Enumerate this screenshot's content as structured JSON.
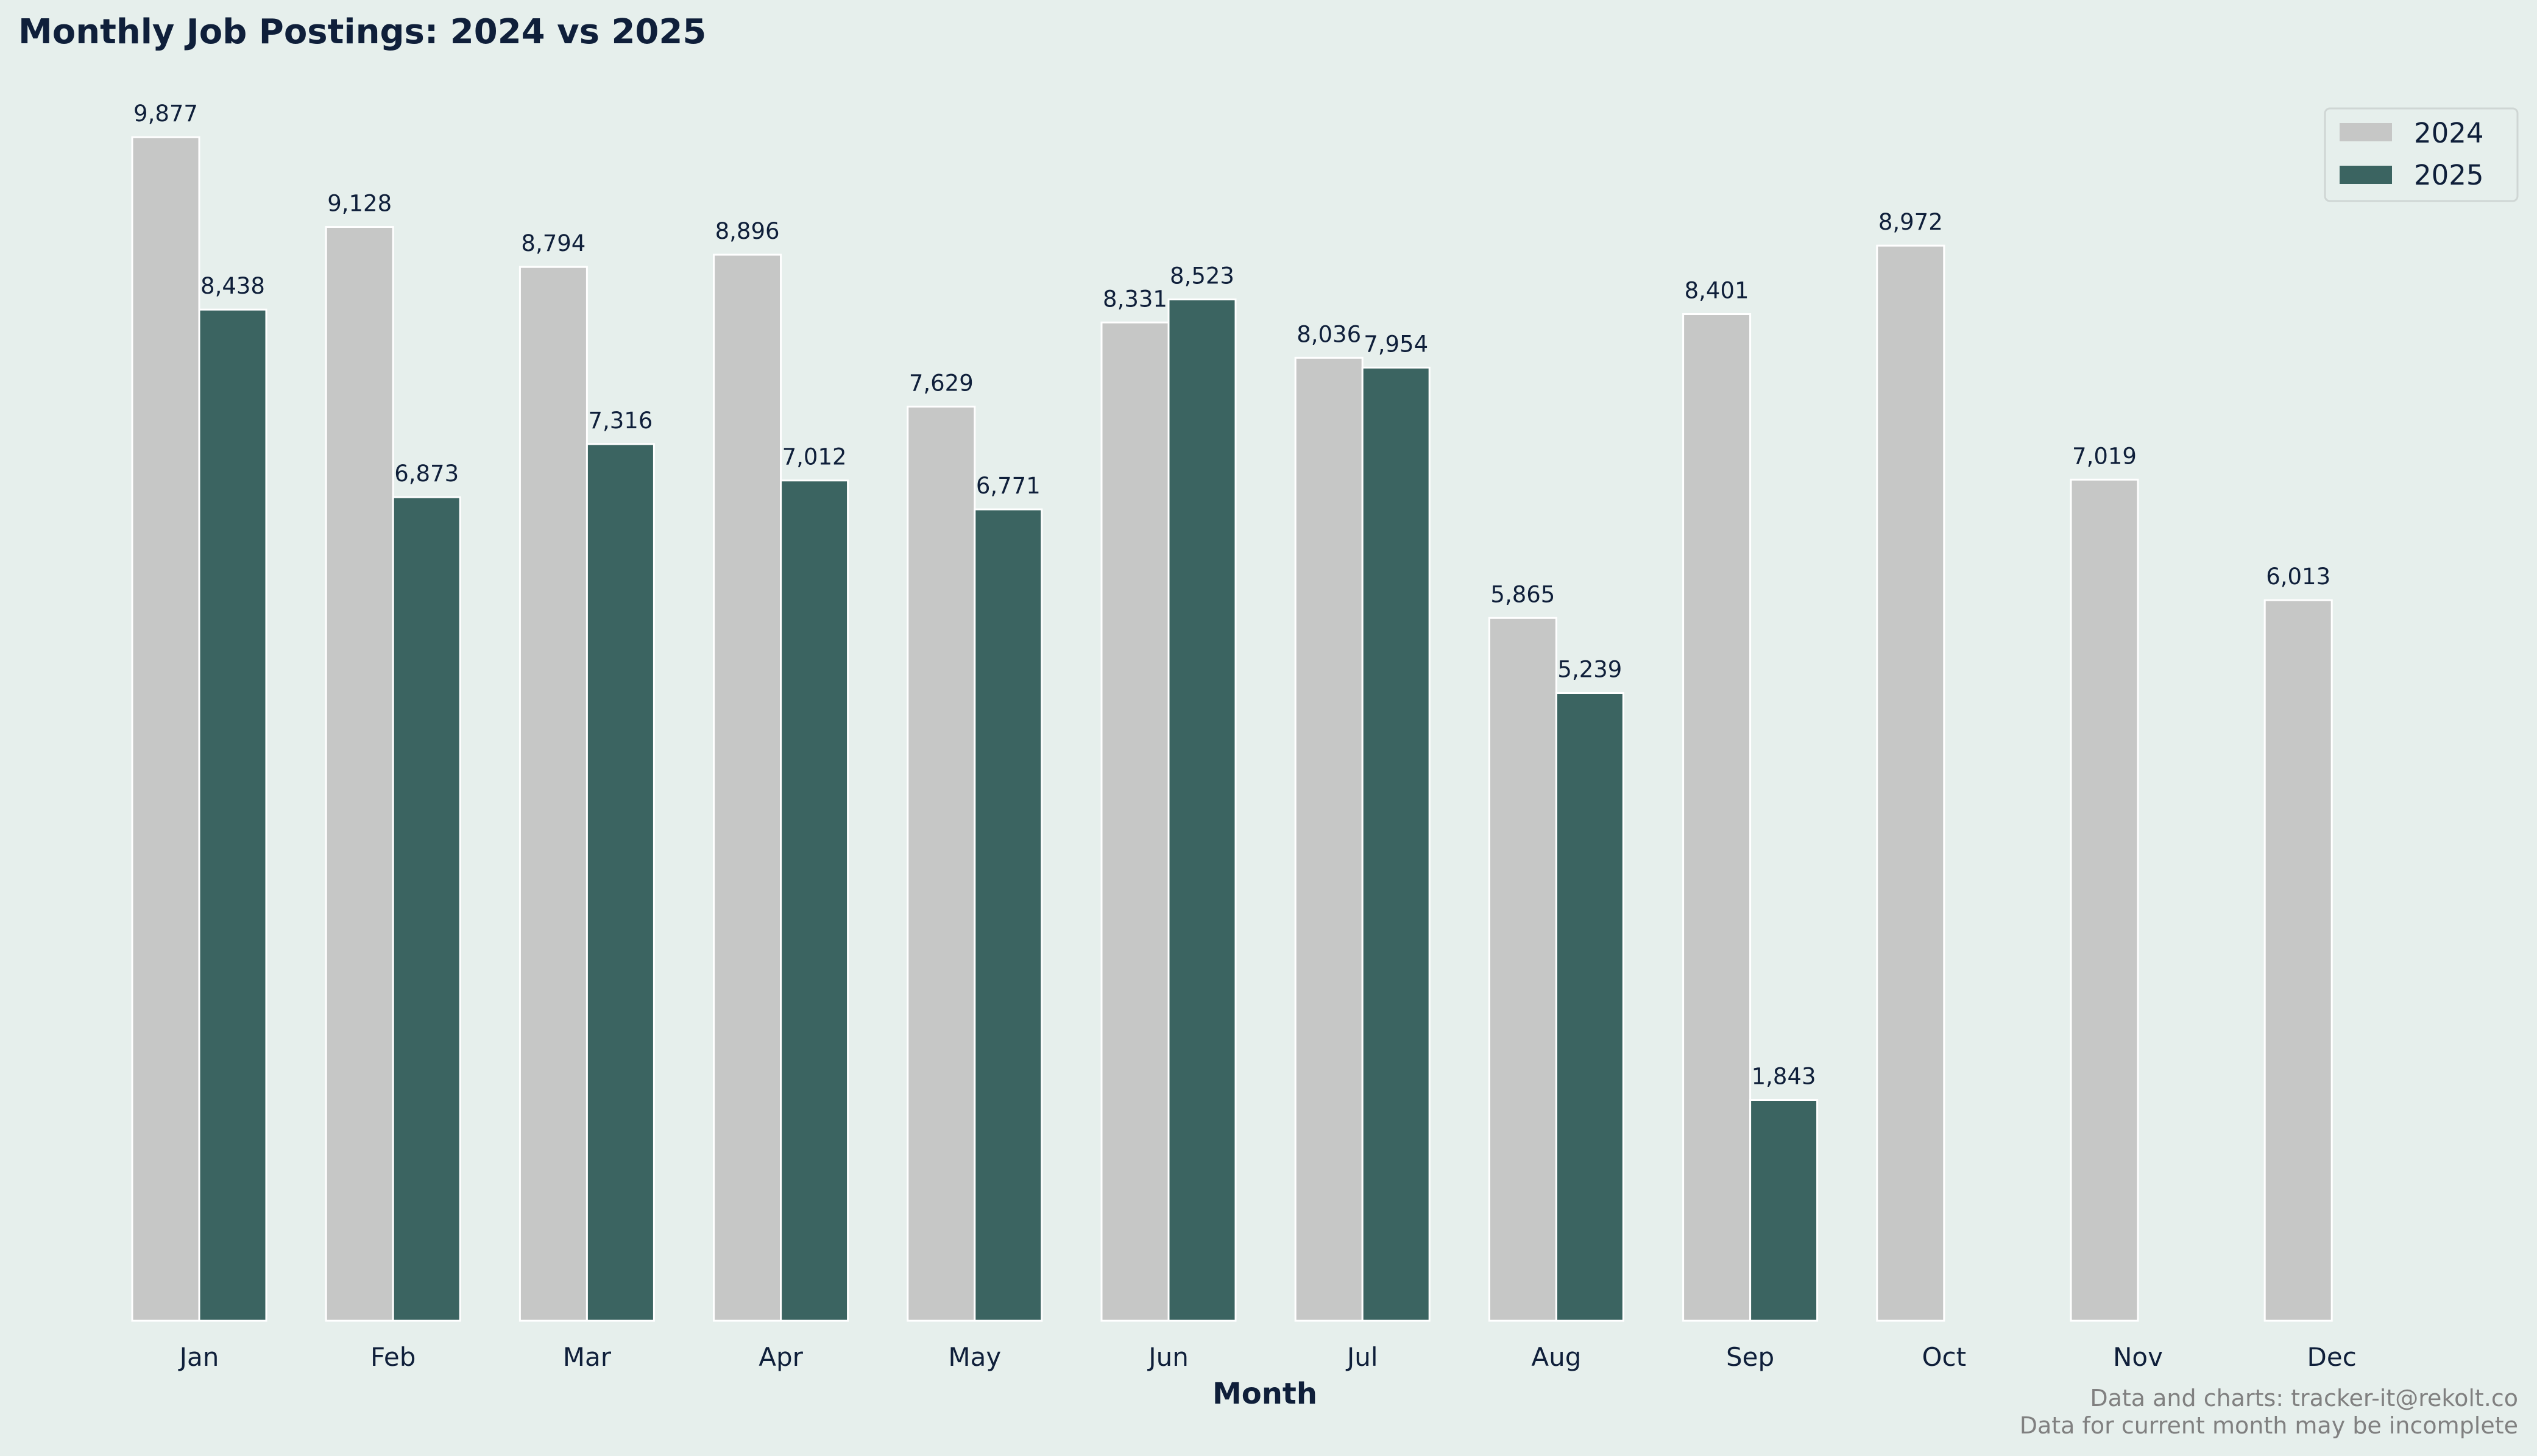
{
  "chart_data": {
    "type": "bar",
    "title": "Monthly Job Postings: 2024 vs 2025",
    "xlabel": "Month",
    "ylabel": "",
    "ylim": [
      0,
      10371
    ],
    "grid": false,
    "legend_position": "top-right",
    "categories": [
      "Jan",
      "Feb",
      "Mar",
      "Apr",
      "May",
      "Jun",
      "Jul",
      "Aug",
      "Sep",
      "Oct",
      "Nov",
      "Dec"
    ],
    "series": [
      {
        "name": "2024",
        "color": "#c6c7c6",
        "values": [
          9877,
          9128,
          8794,
          8896,
          7629,
          8331,
          8036,
          5865,
          8401,
          8972,
          7019,
          6013
        ],
        "labels": [
          "9,877",
          "9,128",
          "8,794",
          "8,896",
          "7,629",
          "8,331",
          "8,036",
          "5,865",
          "8,401",
          "8,972",
          "7,019",
          "6,013"
        ]
      },
      {
        "name": "2025",
        "color": "#3b6461",
        "values": [
          8438,
          6873,
          7316,
          7012,
          6771,
          8523,
          7954,
          5239,
          1843,
          0,
          0,
          0
        ],
        "labels": [
          "8,438",
          "6,873",
          "7,316",
          "7,012",
          "6,771",
          "8,523",
          "7,954",
          "5,239",
          "1,843",
          "",
          "",
          ""
        ]
      }
    ],
    "footnotes": [
      "Data and charts: tracker-it@rekolt.co",
      "Data for current month may be incomplete"
    ]
  }
}
